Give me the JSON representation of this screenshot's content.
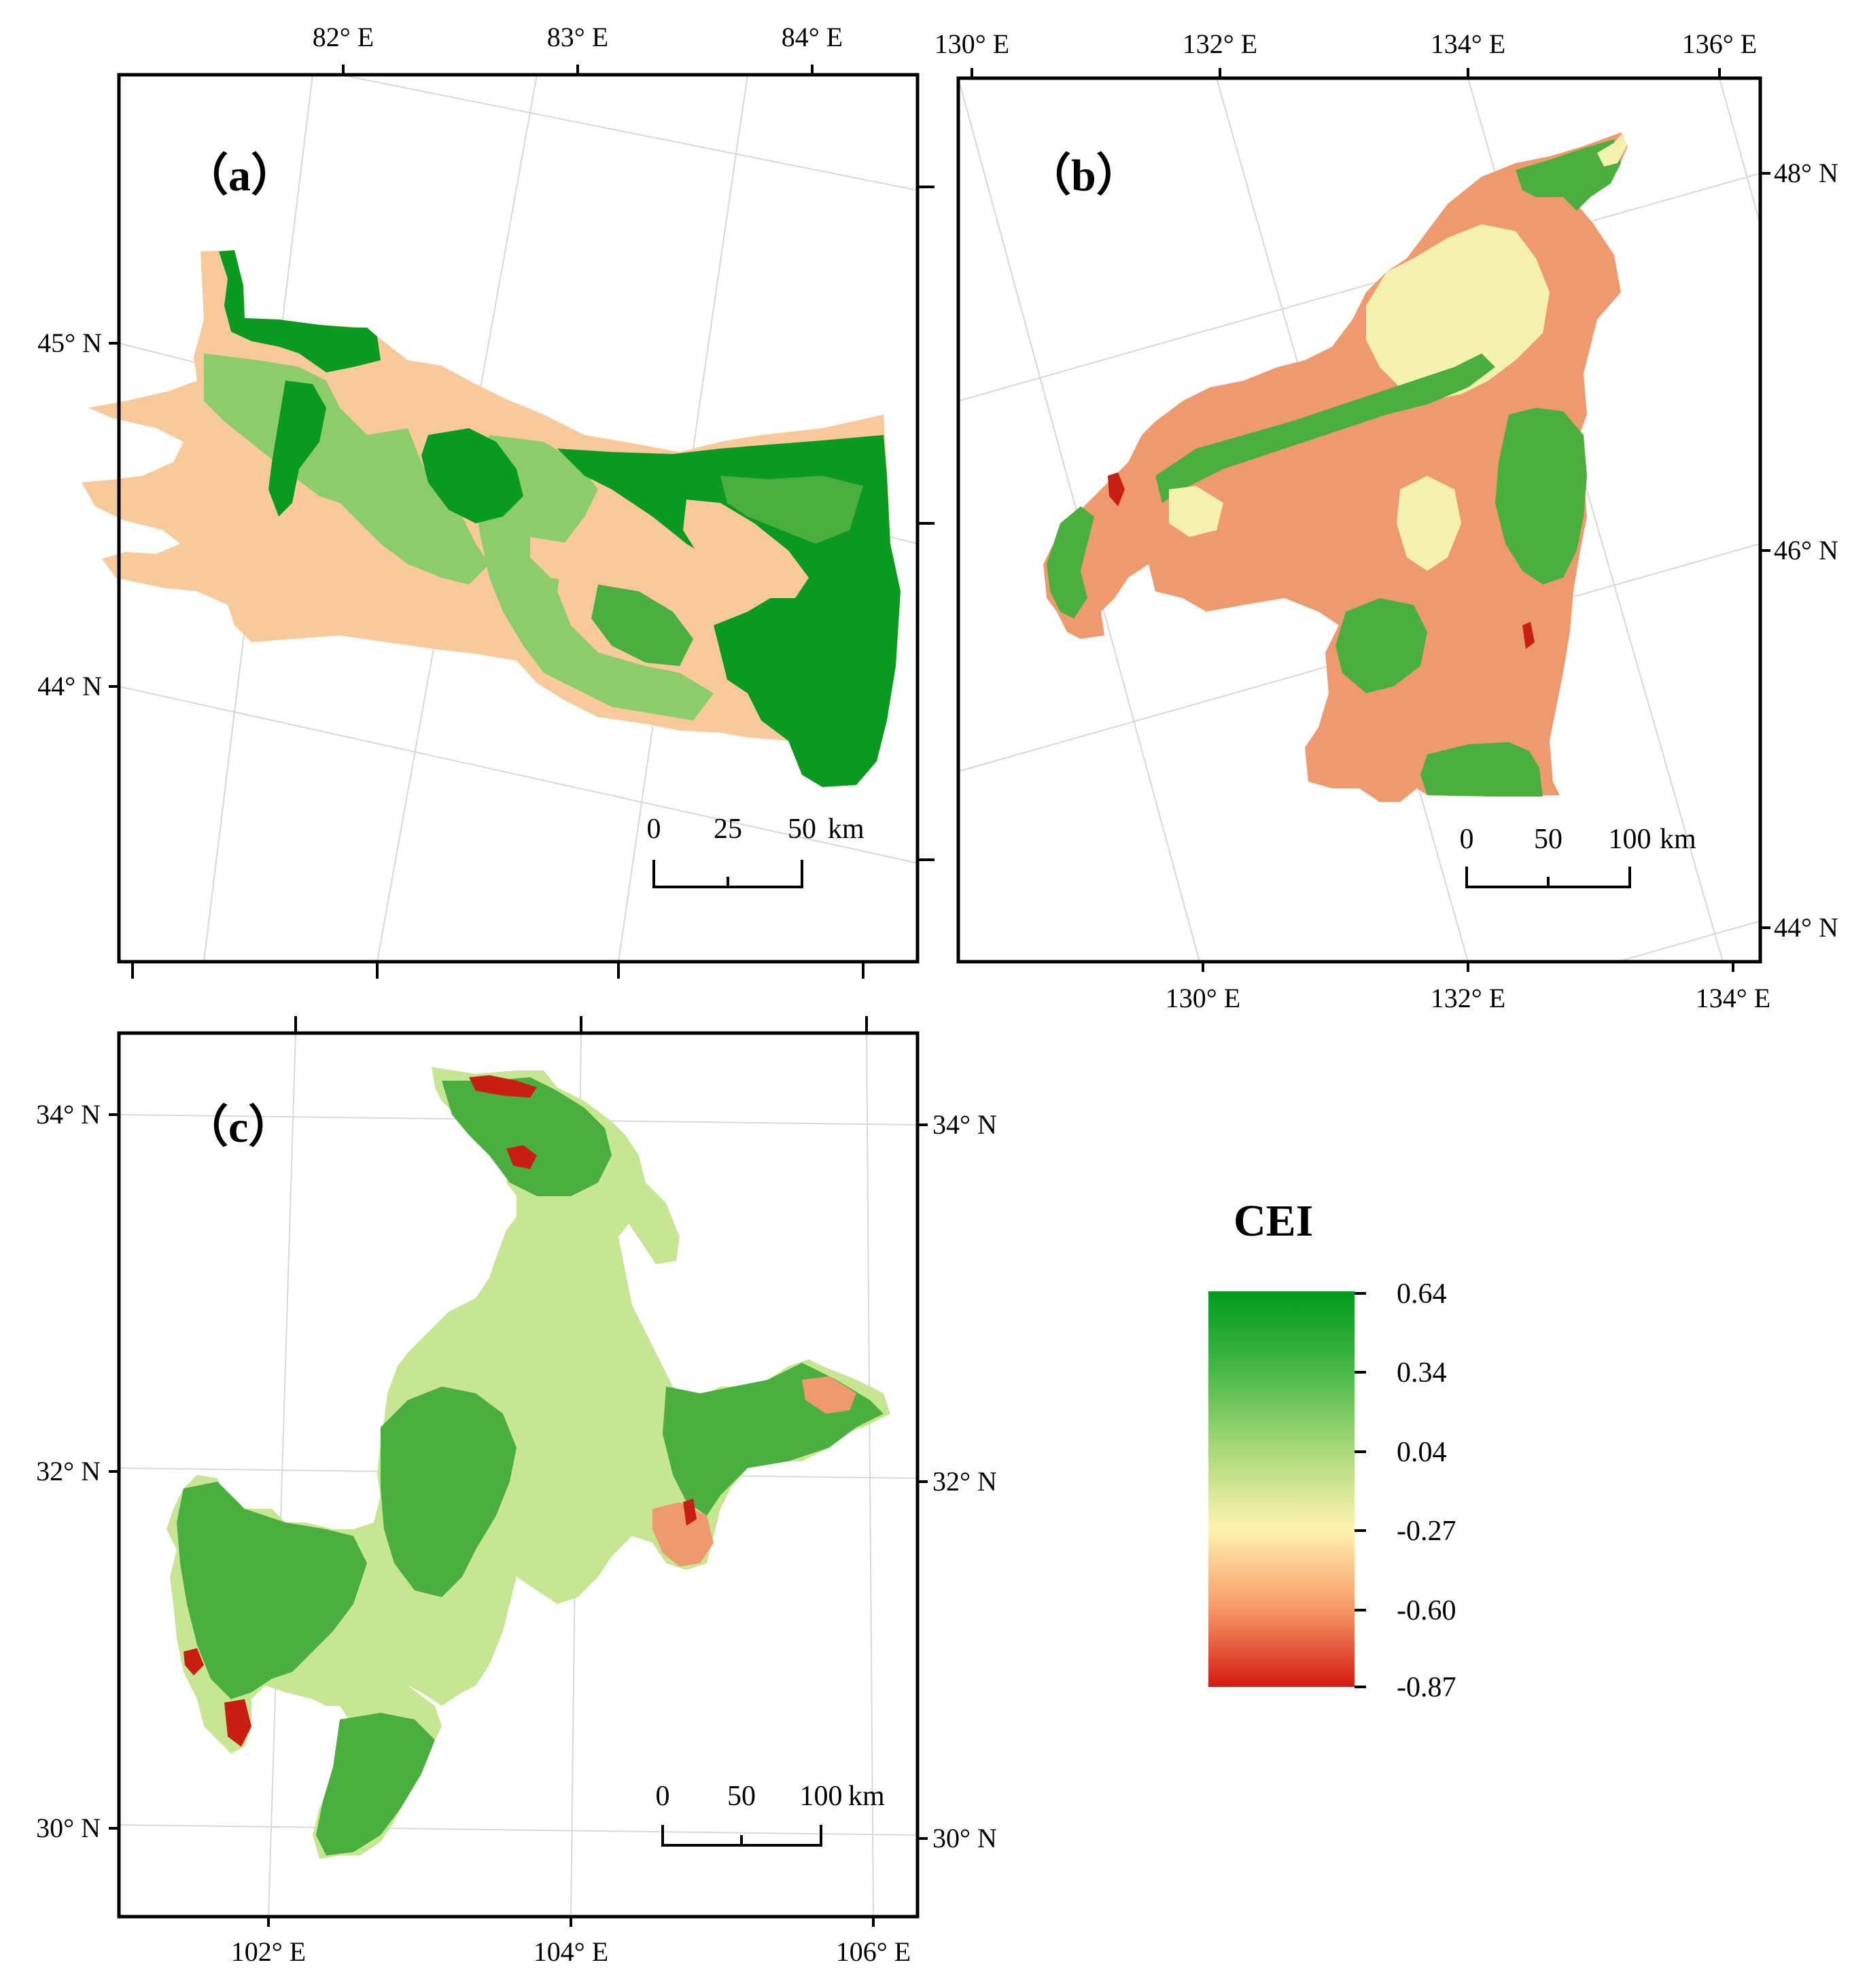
{
  "panels": {
    "a": {
      "label": "（a）",
      "top_labels": [
        "82° E",
        "83° E",
        "84° E"
      ],
      "left_labels": [
        "45° N",
        "44° N"
      ],
      "scale": {
        "ticks": [
          "0",
          "25",
          "50"
        ],
        "unit": "km"
      }
    },
    "b": {
      "label": "（b）",
      "top_labels": [
        "130° E",
        "132° E",
        "134° E",
        "136° E"
      ],
      "bottom_labels": [
        "130° E",
        "132° E",
        "134° E"
      ],
      "right_labels": [
        "48° N",
        "46° N",
        "44° N"
      ],
      "scale": {
        "ticks": [
          "0",
          "50",
          "100"
        ],
        "unit": "km"
      }
    },
    "c": {
      "label": "（c）",
      "bottom_labels": [
        "102° E",
        "104° E",
        "106° E"
      ],
      "left_labels": [
        "34° N",
        "32° N",
        "30° N"
      ],
      "right_labels": [
        "34° N",
        "32° N",
        "30° N"
      ],
      "scale": {
        "ticks": [
          "0",
          "50",
          "100"
        ],
        "unit": "km"
      }
    }
  },
  "legend": {
    "title": "CEI",
    "values": [
      "0.64",
      "0.34",
      "0.04",
      "-0.27",
      "-0.60",
      "-0.87"
    ],
    "colors": [
      "#009a1c",
      "#47b847",
      "#a9d879",
      "#fff3b0",
      "#f89a68",
      "#d31a10"
    ]
  },
  "colors": {
    "dark_green": "#0a9a22",
    "mid_green": "#4aaf3e",
    "light_green": "#8ccc6a",
    "pale_green": "#c7e693",
    "yellow": "#f4f0b0",
    "peach": "#f8c99a",
    "salmon": "#ee9a6e",
    "red": "#c81e14"
  }
}
